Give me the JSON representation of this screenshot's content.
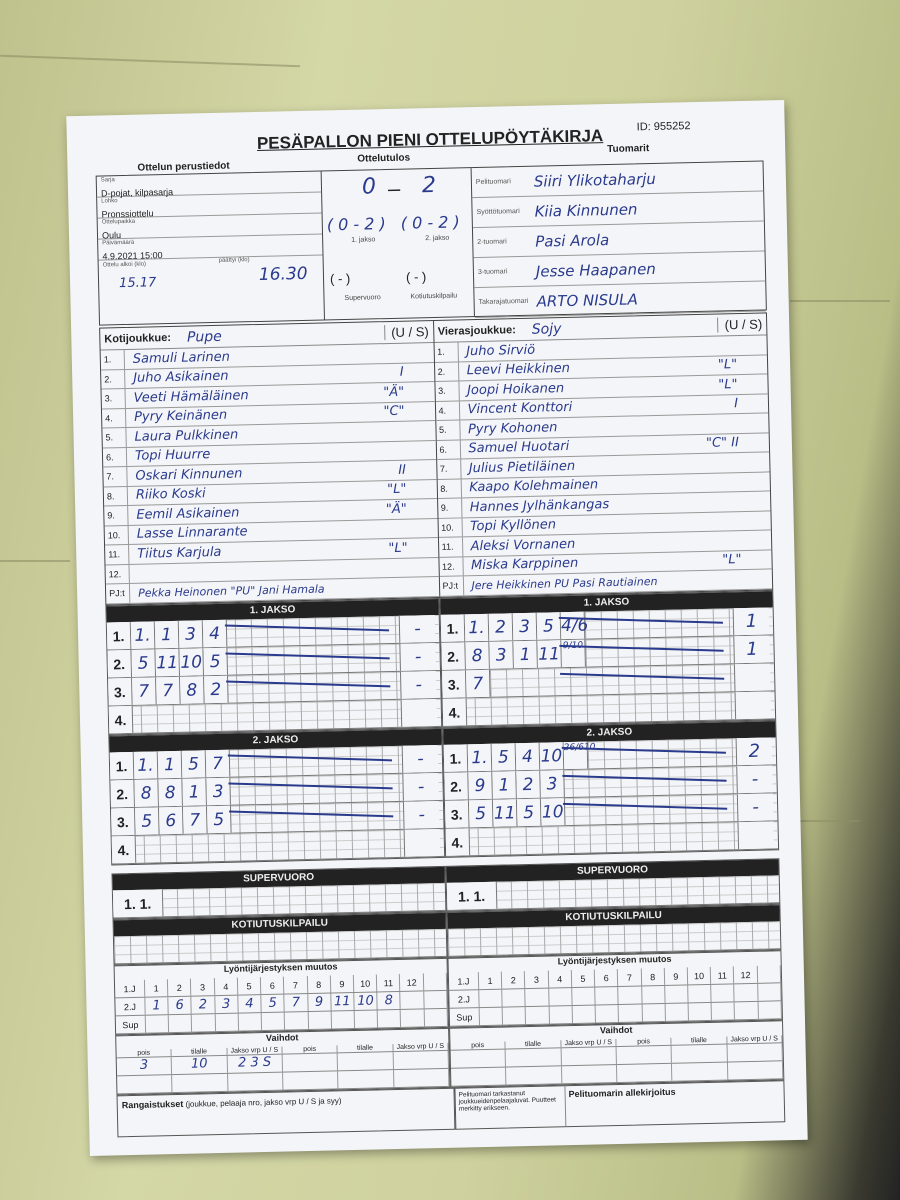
{
  "form": {
    "title": "PESÄPALLON PIENI OTTELUPÖYTÄKIRJA",
    "id": "ID: 955252",
    "basic_caption": "Ottelun perustiedot",
    "result_caption": "Ottelutulos",
    "referees_caption": "Tuomarit",
    "fields": [
      {
        "label": "Sarja",
        "value": "D-pojat, kilpasarja"
      },
      {
        "label": "Lohko",
        "value": "Pronssiottelu"
      },
      {
        "label": "Ottelupaikka",
        "value": "Oulu"
      },
      {
        "label": "Päivämäärä",
        "value": "4.9.2021 15:00"
      }
    ],
    "start_label": "Ottelu alkoi (klo)",
    "start_value": "15.17",
    "end_label": "päättyi (klo)",
    "end_value": "16.30",
    "result": {
      "home": "0",
      "away": "2",
      "p1": "( 0 - 2 )",
      "p1_label": "1. jakso",
      "p2": "( 0 - 2 )",
      "p2_label": "2. jakso",
      "sv": "(  -  )",
      "sv_label": "Supervuoro",
      "kk": "(  -  )",
      "kk_label": "Kotiutuskilpailu"
    },
    "referees": [
      {
        "label": "Pelituomari",
        "name": "Siiri Ylikotaharju"
      },
      {
        "label": "Syöttötuomari",
        "name": "Kiia Kinnunen"
      },
      {
        "label": "2-tuomari",
        "name": "Pasi Arola"
      },
      {
        "label": "3-tuomari",
        "name": "Jesse Haapanen"
      },
      {
        "label": "Takarajatuomari",
        "name": "ARTO NISULA"
      }
    ]
  },
  "home": {
    "label": "Kotijoukkue:",
    "name": "Pupe",
    "us": "(U / S)",
    "pj_label": "PJ:t",
    "pj": "Pekka Heinonen \"PU\"  Jani Hamala",
    "players": [
      {
        "n": "1.",
        "name": "Samuli Larinen",
        "mark": ""
      },
      {
        "n": "2.",
        "name": "Juho Asikainen",
        "mark": "I"
      },
      {
        "n": "3.",
        "name": "Veeti Hämäläinen",
        "mark": "\"Ä\""
      },
      {
        "n": "4.",
        "name": "Pyry Keinänen",
        "mark": "\"C\""
      },
      {
        "n": "5.",
        "name": "Laura Pulkkinen",
        "mark": ""
      },
      {
        "n": "6.",
        "name": "Topi Huurre",
        "mark": ""
      },
      {
        "n": "7.",
        "name": "Oskari Kinnunen",
        "mark": "II"
      },
      {
        "n": "8.",
        "name": "Riiko Koski",
        "mark": "\"L\""
      },
      {
        "n": "9.",
        "name": "Eemil Asikainen",
        "mark": "\"Ä\""
      },
      {
        "n": "10.",
        "name": "Lasse Linnarante",
        "mark": ""
      },
      {
        "n": "11.",
        "name": "Tiitus Karjula",
        "mark": "\"L\""
      },
      {
        "n": "12.",
        "name": "",
        "mark": ""
      }
    ]
  },
  "away": {
    "label": "Vierasjoukkue:",
    "name": "Sojy",
    "us": "(U / S)",
    "pj_label": "PJ:t",
    "pj": "Jere Heikkinen PU Pasi Rautiainen",
    "players": [
      {
        "n": "1.",
        "name": "Juho Sirviö",
        "mark": ""
      },
      {
        "n": "2.",
        "name": "Leevi Heikkinen",
        "mark": "\"L\""
      },
      {
        "n": "3.",
        "name": "Joopi Hoikanen",
        "mark": "\"L\""
      },
      {
        "n": "4.",
        "name": "Vincent Konttori",
        "mark": "I"
      },
      {
        "n": "5.",
        "name": "Pyry Kohonen",
        "mark": ""
      },
      {
        "n": "6.",
        "name": "Samuel Huotari",
        "mark": "\"C\" II"
      },
      {
        "n": "7.",
        "name": "Julius Pietiläinen",
        "mark": ""
      },
      {
        "n": "8.",
        "name": "Kaapo Kolehmainen",
        "mark": ""
      },
      {
        "n": "9.",
        "name": "Hannes Jylhänkangas",
        "mark": ""
      },
      {
        "n": "10.",
        "name": "Topi Kyllönen",
        "mark": ""
      },
      {
        "n": "11.",
        "name": "Aleksi Vornanen",
        "mark": ""
      },
      {
        "n": "12.",
        "name": "Miska Karppinen",
        "mark": "\"L\""
      }
    ]
  },
  "periods": [
    {
      "label": "1. JAKSO",
      "home": [
        {
          "cells": [
            "1.",
            "1.",
            "1",
            "3",
            "4"
          ],
          "score": "-"
        },
        {
          "cells": [
            "2.",
            "5",
            "11",
            "10",
            "5"
          ],
          "score": "-"
        },
        {
          "cells": [
            "3.",
            "7",
            "7",
            "8",
            "2"
          ],
          "score": "-"
        },
        {
          "cells": [
            "4."
          ],
          "score": ""
        }
      ],
      "away": [
        {
          "cells": [
            "1.",
            "1.",
            "2",
            "3",
            "5",
            "4/6"
          ],
          "score": "1"
        },
        {
          "cells": [
            "2.",
            "8",
            "3",
            "1",
            "11",
            "9/10"
          ],
          "score": "1"
        },
        {
          "cells": [
            "3.",
            "7"
          ],
          "score": ""
        },
        {
          "cells": [
            "4."
          ],
          "score": ""
        }
      ]
    },
    {
      "label": "2. JAKSO",
      "home": [
        {
          "cells": [
            "1.",
            "1.",
            "1",
            "5",
            "7"
          ],
          "score": "-"
        },
        {
          "cells": [
            "2.",
            "8",
            "8",
            "1",
            "3"
          ],
          "score": "-"
        },
        {
          "cells": [
            "3.",
            "5",
            "6",
            "7",
            "5"
          ],
          "score": "-"
        },
        {
          "cells": [
            "4."
          ],
          "score": ""
        }
      ],
      "away": [
        {
          "cells": [
            "1.",
            "1.",
            "5",
            "4",
            "10",
            "26/610"
          ],
          "score": "2"
        },
        {
          "cells": [
            "2.",
            "9",
            "1",
            "2",
            "3"
          ],
          "score": "-"
        },
        {
          "cells": [
            "3.",
            "5",
            "11",
            "5",
            "10"
          ],
          "score": "-"
        },
        {
          "cells": [
            "4."
          ],
          "score": ""
        }
      ]
    }
  ],
  "supervuoro": {
    "label": "SUPERVUORO",
    "row": "1.   1."
  },
  "kotiutus": {
    "label": "KOTIUTUSKILPAILU"
  },
  "lineup": {
    "label": "Lyöntijärjestyksen muutos",
    "rows": [
      "1.J",
      "2.J",
      "Sup"
    ],
    "header": [
      "1",
      "2",
      "3",
      "4",
      "5",
      "6",
      "7",
      "8",
      "9",
      "10",
      "11",
      "12"
    ],
    "home_2j": [
      "1",
      "6",
      "2",
      "3",
      "4",
      "5",
      "7",
      "9",
      "11",
      "10",
      "8",
      ""
    ]
  },
  "subs": {
    "label": "Vaihdot",
    "cols": [
      "pois",
      "tilalle",
      "Jakso vrp U / S",
      "pois",
      "tilalle",
      "Jakso vrp U / S"
    ],
    "home_row": [
      "3",
      "10",
      "2 3 S",
      "",
      "",
      ""
    ]
  },
  "footer": {
    "penalties_label": "Rangaistukset",
    "penalties_hint": "(joukkue, pelaaja nro, jakso vrp U / S ja syy)",
    "check_text": "Pelituomari tarkastanut joukkueidenpelaajaluvat. Puutteet merkitty erikseen.",
    "signature_label": "Pelituomarin allekirjoitus"
  }
}
